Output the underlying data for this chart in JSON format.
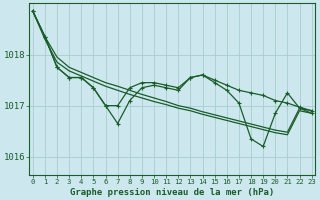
{
  "title": "Graphe pression niveau de la mer (hPa)",
  "background_color": "#cce8ee",
  "grid_color": "#aacccc",
  "line_color": "#1a5c2a",
  "x_ticks": [
    0,
    1,
    2,
    3,
    4,
    5,
    6,
    7,
    8,
    9,
    10,
    11,
    12,
    13,
    14,
    15,
    16,
    17,
    18,
    19,
    20,
    21,
    22,
    23
  ],
  "y_ticks": [
    1016,
    1017,
    1018
  ],
  "ylim": [
    1015.65,
    1019.0
  ],
  "xlim": [
    -0.3,
    23.3
  ],
  "smooth1": [
    1018.85,
    1018.35,
    1017.95,
    1017.75,
    1017.65,
    1017.55,
    1017.45,
    1017.38,
    1017.3,
    1017.22,
    1017.15,
    1017.08,
    1017.0,
    1016.95,
    1016.88,
    1016.82,
    1016.76,
    1016.7,
    1016.64,
    1016.58,
    1016.52,
    1016.48,
    1016.95,
    1016.9
  ],
  "smooth2": [
    1018.85,
    1018.3,
    1017.85,
    1017.68,
    1017.58,
    1017.48,
    1017.38,
    1017.3,
    1017.22,
    1017.15,
    1017.08,
    1017.02,
    1016.95,
    1016.9,
    1016.83,
    1016.77,
    1016.71,
    1016.65,
    1016.59,
    1016.53,
    1016.47,
    1016.43,
    1016.9,
    1016.85
  ],
  "jagged1": [
    1018.85,
    1018.35,
    1017.75,
    1017.55,
    1017.55,
    1017.35,
    1017.0,
    1017.0,
    1017.35,
    1017.45,
    1017.45,
    1017.4,
    1017.35,
    1017.55,
    1017.6,
    1017.5,
    1017.4,
    1017.3,
    1017.25,
    1017.2,
    1017.1,
    1017.05,
    1016.97,
    1016.9
  ],
  "jagged2": [
    1018.85,
    1018.35,
    1017.75,
    1017.55,
    1017.55,
    1017.35,
    1017.0,
    1016.65,
    1017.1,
    1017.35,
    1017.4,
    1017.35,
    1017.3,
    1017.55,
    1017.6,
    1017.45,
    1017.3,
    1017.05,
    1016.35,
    1016.2,
    1016.85,
    1017.25,
    1016.95,
    1016.85
  ]
}
